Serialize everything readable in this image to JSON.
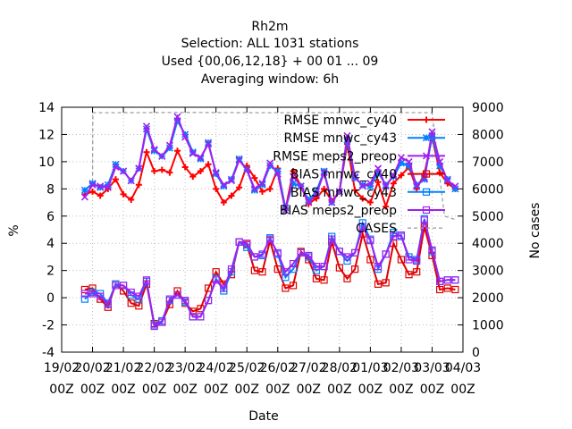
{
  "chart_data": {
    "type": "line",
    "title": [
      "Rh2m",
      "Selection: ALL   1031 stations",
      "Used {00,06,12,18} + 00 01 ... 09",
      "Averaging window:  6h"
    ],
    "xlabel": "Date",
    "ylabel": "%",
    "y2label": "No cases",
    "ylim": [
      -4,
      14
    ],
    "y2lim": [
      0,
      9000
    ],
    "grid": true,
    "x_ticks": [
      {
        "top": "19/02",
        "bottom": "00Z"
      },
      {
        "top": "20/02",
        "bottom": "00Z"
      },
      {
        "top": "21/02",
        "bottom": "00Z"
      },
      {
        "top": "22/02",
        "bottom": "00Z"
      },
      {
        "top": "23/02",
        "bottom": "00Z"
      },
      {
        "top": "24/02",
        "bottom": "00Z"
      },
      {
        "top": "25/02",
        "bottom": "00Z"
      },
      {
        "top": "26/02",
        "bottom": "00Z"
      },
      {
        "top": "27/02",
        "bottom": "00Z"
      },
      {
        "top": "28/02",
        "bottom": "00Z"
      },
      {
        "top": "01/03",
        "bottom": "00Z"
      },
      {
        "top": "02/03",
        "bottom": "00Z"
      },
      {
        "top": "03/03",
        "bottom": "00Z"
      },
      {
        "top": "04/03",
        "bottom": "00Z"
      }
    ],
    "y_ticks": [
      -4,
      -2,
      0,
      2,
      4,
      6,
      8,
      10,
      12,
      14
    ],
    "y2_ticks": [
      0,
      1000,
      2000,
      3000,
      4000,
      5000,
      6000,
      7000,
      8000,
      9000
    ],
    "x": [
      0.75,
      1.0,
      1.25,
      1.5,
      1.75,
      2.0,
      2.25,
      2.5,
      2.75,
      3.0,
      3.25,
      3.5,
      3.75,
      4.0,
      4.25,
      4.5,
      4.75,
      5.0,
      5.25,
      5.5,
      5.75,
      6.0,
      6.25,
      6.5,
      6.75,
      7.0,
      7.25,
      7.5,
      7.75,
      8.0,
      8.25,
      8.5,
      8.75,
      9.0,
      9.25,
      9.5,
      9.75,
      10.0,
      10.25,
      10.5,
      10.75,
      11.0,
      11.25,
      11.5,
      11.75,
      12.0,
      12.25,
      12.5,
      12.75
    ],
    "series": [
      {
        "name": "RMSE mnwc_cy40",
        "axis": "y",
        "color": "#ff0000",
        "marker": "plus",
        "values": [
          7.6,
          7.8,
          7.5,
          8.0,
          8.7,
          7.6,
          7.2,
          8.3,
          10.7,
          9.3,
          9.4,
          9.2,
          10.8,
          9.6,
          8.9,
          9.3,
          9.8,
          8.0,
          7.0,
          7.5,
          8.1,
          9.7,
          8.8,
          7.8,
          8.0,
          9.5,
          6.5,
          9.3,
          8.2,
          6.9,
          7.3,
          8.0,
          7.1,
          7.8,
          11.3,
          7.9,
          7.3,
          7.0,
          8.5,
          6.7,
          8.4,
          9.0,
          9.6,
          8.0,
          9.1,
          11.8,
          9.2,
          8.4,
          8.0
        ]
      },
      {
        "name": "RMSE mnwc_cy43",
        "axis": "y",
        "color": "#0080ff",
        "marker": "star",
        "values": [
          7.9,
          8.4,
          8.1,
          8.3,
          9.8,
          9.3,
          8.6,
          9.5,
          12.4,
          10.8,
          10.4,
          11.0,
          13.0,
          12.0,
          10.7,
          10.2,
          11.4,
          9.1,
          8.2,
          8.7,
          10.2,
          9.4,
          7.9,
          8.3,
          9.7,
          9.3,
          6.6,
          8.4,
          8.2,
          7.2,
          7.8,
          9.3,
          7.0,
          7.8,
          11.6,
          8.8,
          8.3,
          8.2,
          9.2,
          8.3,
          8.9,
          9.9,
          9.7,
          8.3,
          8.7,
          11.9,
          9.7,
          8.7,
          8.0
        ]
      },
      {
        "name": "RMSE meps2_preop",
        "axis": "y",
        "color": "#a020f0",
        "marker": "cross",
        "values": [
          7.4,
          8.3,
          8.2,
          8.1,
          9.6,
          9.3,
          8.6,
          9.5,
          12.6,
          10.9,
          10.4,
          11.2,
          13.3,
          11.8,
          10.6,
          10.3,
          11.3,
          9.2,
          8.3,
          8.6,
          10.1,
          9.4,
          8.0,
          8.4,
          9.9,
          9.1,
          6.4,
          8.9,
          8.2,
          7.0,
          7.6,
          9.2,
          7.0,
          7.8,
          11.9,
          8.9,
          8.2,
          8.4,
          9.5,
          8.2,
          9.0,
          10.3,
          10.0,
          8.2,
          8.8,
          12.2,
          10.0,
          8.6,
          8.2
        ]
      },
      {
        "name": "BIAS mnwc_cy40",
        "axis": "y",
        "color": "#e00000",
        "marker": "box",
        "values": [
          0.6,
          0.7,
          -0.1,
          -0.7,
          1.0,
          0.5,
          -0.4,
          -0.6,
          1.0,
          -1.9,
          -1.8,
          -0.5,
          0.5,
          -0.4,
          -1.0,
          -0.8,
          0.7,
          1.9,
          1.0,
          1.7,
          4.1,
          3.9,
          2.0,
          1.9,
          4.2,
          2.1,
          0.7,
          0.9,
          3.4,
          2.8,
          1.4,
          1.3,
          4.1,
          2.2,
          1.4,
          2.1,
          4.7,
          2.8,
          1.0,
          1.1,
          4.0,
          2.8,
          1.7,
          1.9,
          5.2,
          3.1,
          0.6,
          0.7,
          0.6
        ]
      },
      {
        "name": "BIAS mnwc_cy43",
        "axis": "y",
        "color": "#0080ff",
        "marker": "box",
        "values": [
          -0.1,
          0.4,
          0.3,
          -0.4,
          1.0,
          0.9,
          0.2,
          -0.1,
          1.2,
          -2.0,
          -1.7,
          -0.2,
          0.2,
          -0.3,
          -1.4,
          -1.4,
          -0.2,
          1.4,
          0.5,
          1.9,
          4.1,
          3.7,
          3.0,
          3.1,
          4.4,
          3.2,
          1.5,
          2.1,
          3.3,
          3.0,
          2.0,
          2.3,
          4.5,
          3.4,
          2.7,
          3.3,
          5.5,
          4.3,
          2.1,
          3.2,
          4.8,
          4.5,
          3.0,
          2.8,
          5.8,
          3.4,
          1.2,
          1.3,
          1.3
        ]
      },
      {
        "name": "BIAS meps2_preop",
        "axis": "y",
        "color": "#a020f0",
        "marker": "box",
        "values": [
          0.3,
          0.3,
          0.1,
          -0.5,
          0.9,
          0.9,
          0.4,
          0.1,
          1.3,
          -2.1,
          -1.8,
          -0.1,
          0.2,
          -0.2,
          -1.4,
          -1.4,
          -0.2,
          1.3,
          0.7,
          2.1,
          4.1,
          4.0,
          3.0,
          3.2,
          4.3,
          3.3,
          1.9,
          2.5,
          3.3,
          3.1,
          2.3,
          2.3,
          4.3,
          3.4,
          3.0,
          3.3,
          5.2,
          4.2,
          2.3,
          3.2,
          4.5,
          4.6,
          2.8,
          2.7,
          5.7,
          3.5,
          1.2,
          1.3,
          1.3
        ]
      },
      {
        "name": "CASES",
        "axis": "y2",
        "color": "#a0a0a0",
        "marker": "none",
        "dash": true,
        "x": [
          0.75,
          1.0,
          1.01,
          1.25,
          2.0,
          4.0,
          6.0,
          8.0,
          10.0,
          12.0,
          12.4,
          12.8
        ],
        "values": [
          6000,
          6100,
          8800,
          8800,
          8800,
          8810,
          8800,
          8800,
          8810,
          8800,
          5000,
          4850
        ]
      }
    ],
    "legend_position": "top-right"
  }
}
